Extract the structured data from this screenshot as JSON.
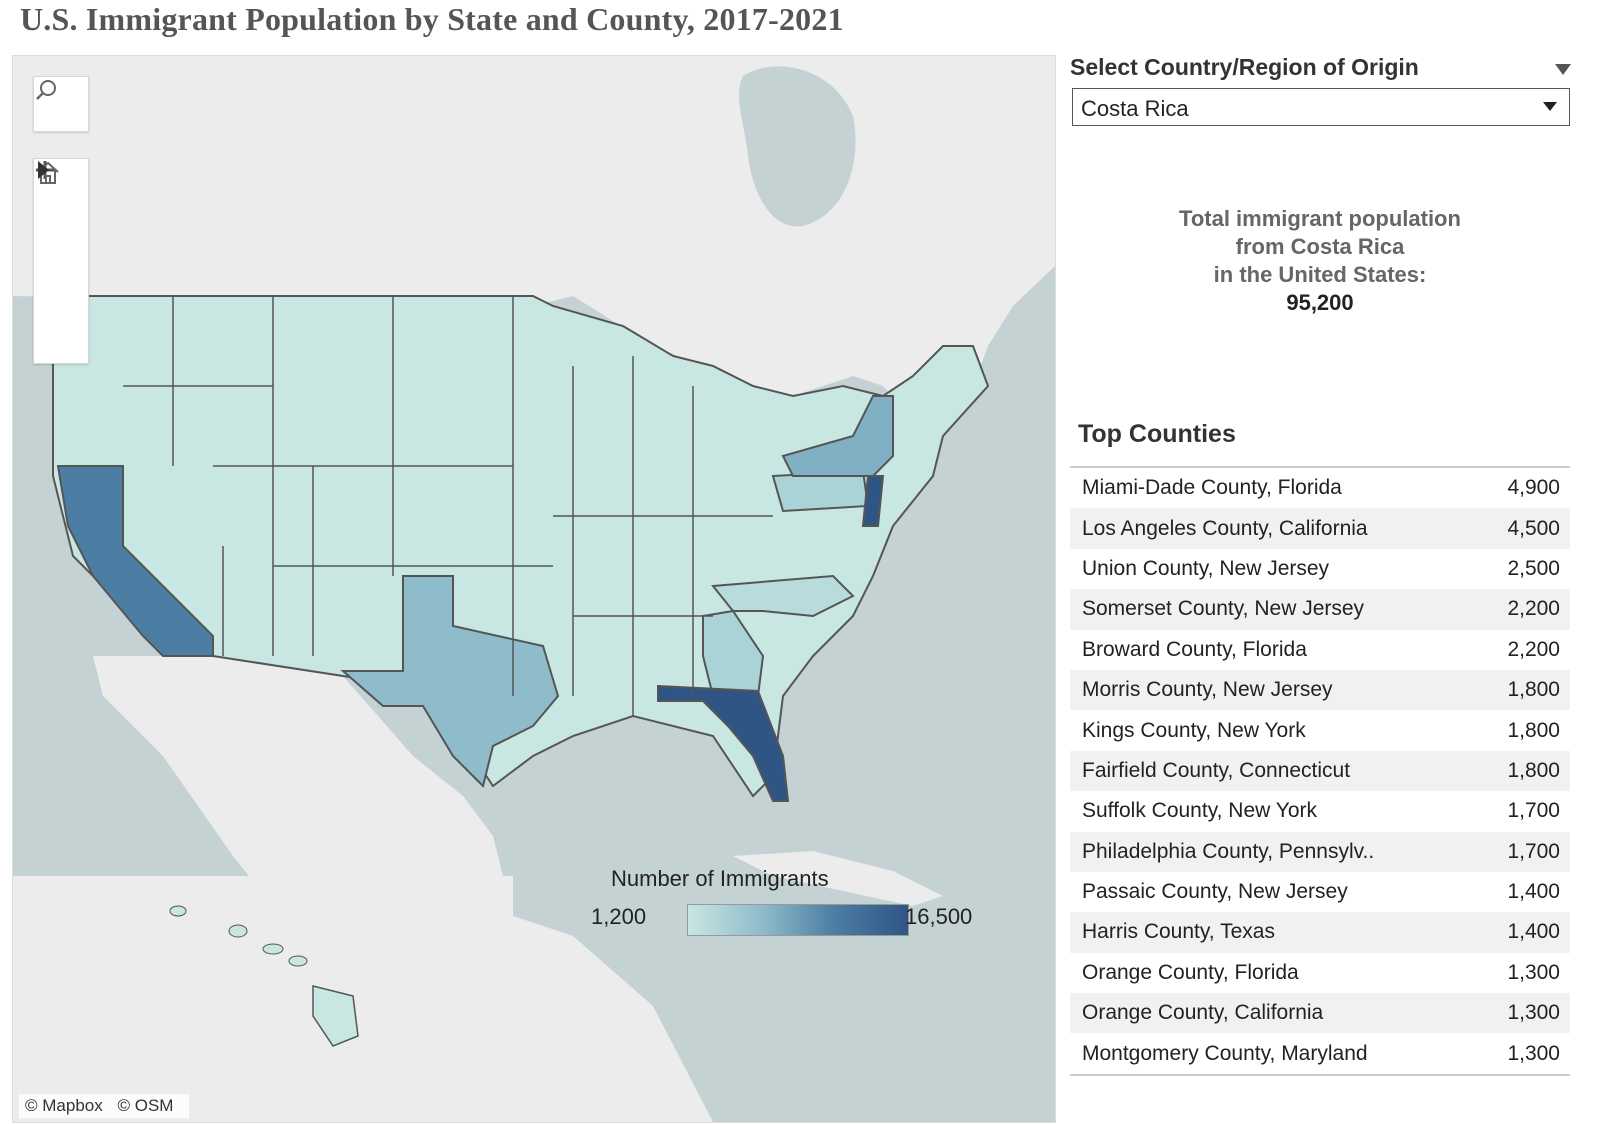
{
  "title": "U.S. Immigrant Population by State and County, 2017-2021",
  "filter": {
    "label": "Select Country/Region of Origin",
    "selected": "Costa Rica"
  },
  "total": {
    "line1": "Total immigrant population",
    "line2": "from Costa Rica",
    "line3": "in the United States:",
    "value": "95,200"
  },
  "legend": {
    "title": "Number of Immigrants",
    "min": "1,200",
    "max": "16,500"
  },
  "attribution": {
    "mapbox": "© Mapbox",
    "osm": "© OSM"
  },
  "top_counties": {
    "title": "Top Counties",
    "rows": [
      {
        "county": "Miami-Dade County, Florida",
        "value": "4,900"
      },
      {
        "county": "Los Angeles County, California",
        "value": "4,500"
      },
      {
        "county": "Union County, New Jersey",
        "value": "2,500"
      },
      {
        "county": "Somerset County, New Jersey",
        "value": "2,200"
      },
      {
        "county": "Broward County, Florida",
        "value": "2,200"
      },
      {
        "county": "Morris County, New Jersey",
        "value": "1,800"
      },
      {
        "county": "Kings County, New York",
        "value": "1,800"
      },
      {
        "county": "Fairfield County, Connecticut",
        "value": "1,800"
      },
      {
        "county": "Suffolk County, New York",
        "value": "1,700"
      },
      {
        "county": "Philadelphia County, Pennsylv..",
        "value": "1,700"
      },
      {
        "county": "Passaic County, New Jersey",
        "value": "1,400"
      },
      {
        "county": "Harris County, Texas",
        "value": "1,400"
      },
      {
        "county": "Orange County, Florida",
        "value": "1,300"
      },
      {
        "county": "Orange County, California",
        "value": "1,300"
      },
      {
        "county": "Montgomery County, Maryland",
        "value": "1,300"
      }
    ]
  },
  "colors": {
    "low": "#c8e6e2",
    "mid_low": "#a9d3d6",
    "mid": "#8fbcca",
    "high": "#4c7ea3",
    "highest": "#2f5585",
    "water": "#c5d2d3",
    "land_other": "#ececec"
  }
}
